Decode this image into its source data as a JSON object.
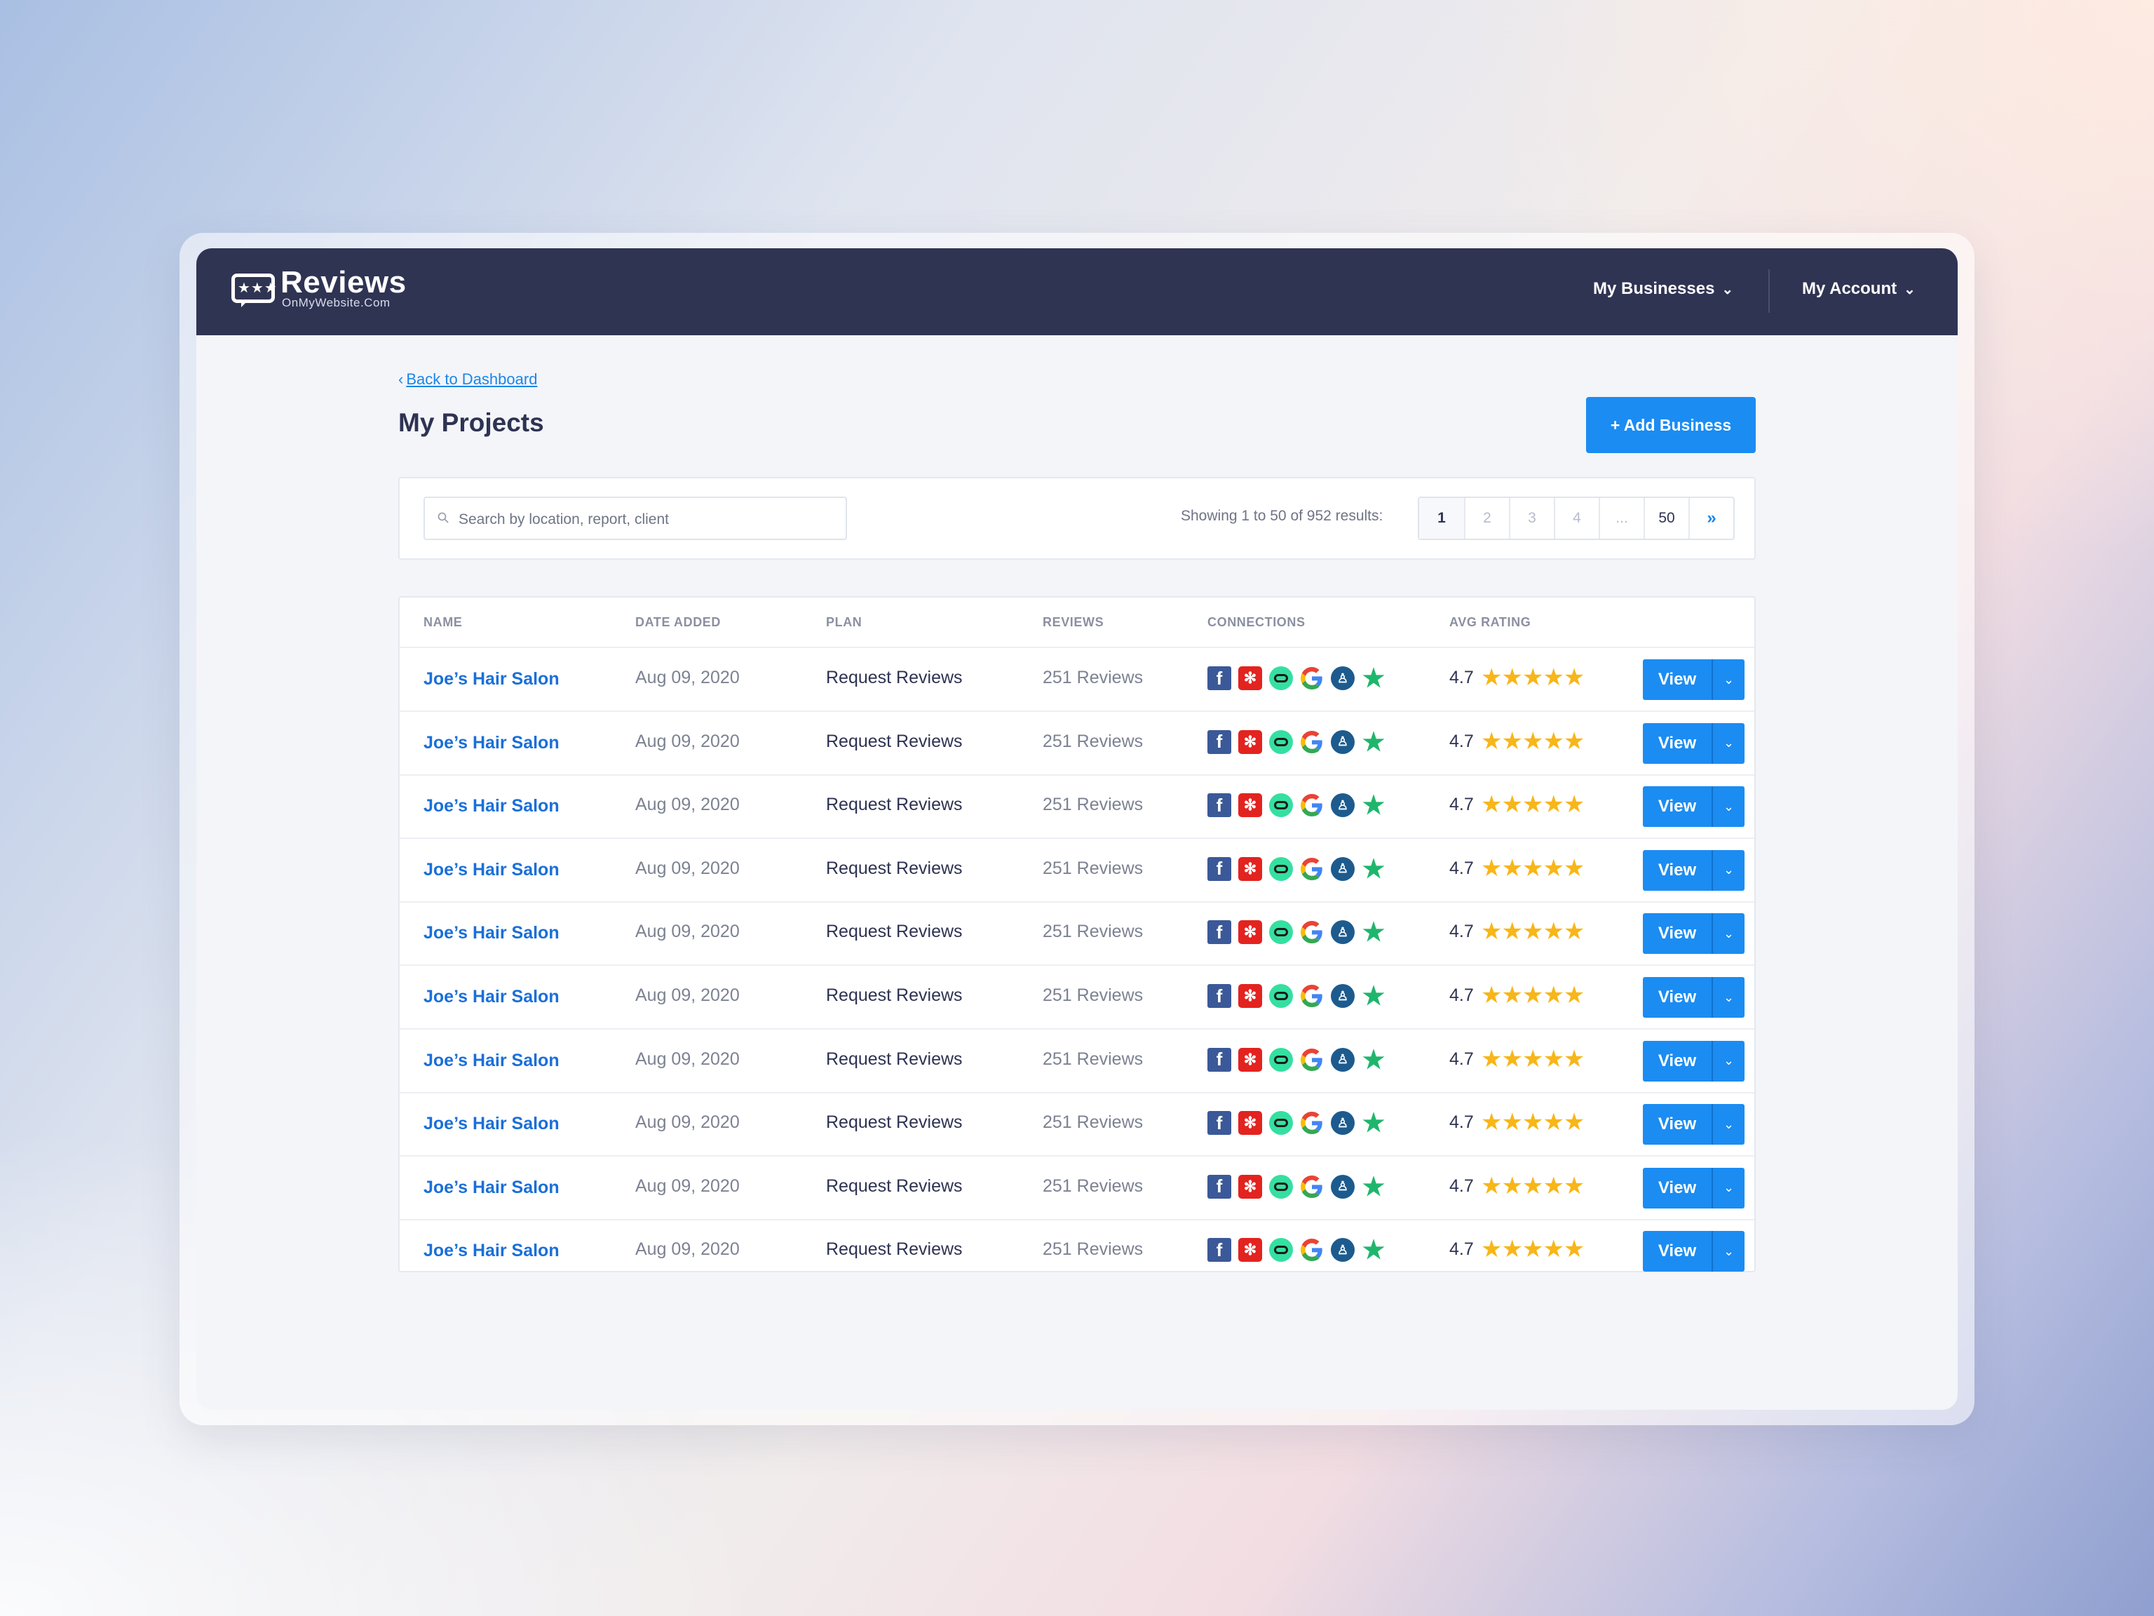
{
  "brand": {
    "name": "Reviews",
    "sub": "OnMyWebsite.Com",
    "stars": "★★★"
  },
  "nav": {
    "businesses": "My Businesses",
    "account": "My Account",
    "chevron": "⌄"
  },
  "page": {
    "back_link": "Back to Dashboard",
    "back_chevron": "‹",
    "title": "My Projects",
    "add_button": "+ Add Business"
  },
  "search": {
    "placeholder": "Search by location, report, client"
  },
  "pagination": {
    "showing": "Showing 1 to 50 of 952 results:",
    "pages": [
      "1",
      "2",
      "3",
      "4",
      "...",
      "50"
    ],
    "next": "»",
    "current": "1"
  },
  "table": {
    "headers": {
      "name": "NAME",
      "date": "DATE ADDED",
      "plan": "PLAN",
      "reviews": "REVIEWS",
      "connections": "CONNECTIONS",
      "rating": "AVG RATING"
    },
    "connection_icons": [
      "facebook-icon",
      "yelp-icon",
      "tripadvisor-icon",
      "google-icon",
      "bbb-icon",
      "trustpilot-icon"
    ],
    "view_label": "View",
    "rows": [
      {
        "name": "Joe’s Hair Salon",
        "date": "Aug 09, 2020",
        "plan": "Request Reviews",
        "reviews": "251 Reviews",
        "rating": "4.7",
        "stars": 5
      },
      {
        "name": "Joe’s Hair Salon",
        "date": "Aug 09, 2020",
        "plan": "Request Reviews",
        "reviews": "251 Reviews",
        "rating": "4.7",
        "stars": 5
      },
      {
        "name": "Joe’s Hair Salon",
        "date": "Aug 09, 2020",
        "plan": "Request Reviews",
        "reviews": "251 Reviews",
        "rating": "4.7",
        "stars": 5
      },
      {
        "name": "Joe’s Hair Salon",
        "date": "Aug 09, 2020",
        "plan": "Request Reviews",
        "reviews": "251 Reviews",
        "rating": "4.7",
        "stars": 5
      },
      {
        "name": "Joe’s Hair Salon",
        "date": "Aug 09, 2020",
        "plan": "Request Reviews",
        "reviews": "251 Reviews",
        "rating": "4.7",
        "stars": 5
      },
      {
        "name": "Joe’s Hair Salon",
        "date": "Aug 09, 2020",
        "plan": "Request Reviews",
        "reviews": "251 Reviews",
        "rating": "4.7",
        "stars": 5
      },
      {
        "name": "Joe’s Hair Salon",
        "date": "Aug 09, 2020",
        "plan": "Request Reviews",
        "reviews": "251 Reviews",
        "rating": "4.7",
        "stars": 5
      },
      {
        "name": "Joe’s Hair Salon",
        "date": "Aug 09, 2020",
        "plan": "Request Reviews",
        "reviews": "251 Reviews",
        "rating": "4.7",
        "stars": 5
      },
      {
        "name": "Joe’s Hair Salon",
        "date": "Aug 09, 2020",
        "plan": "Request Reviews",
        "reviews": "251 Reviews",
        "rating": "4.7",
        "stars": 5
      },
      {
        "name": "Joe’s Hair Salon",
        "date": "Aug 09, 2020",
        "plan": "Request Reviews",
        "reviews": "251 Reviews",
        "rating": "4.7",
        "stars": 5
      }
    ]
  },
  "colors": {
    "navbar": "#303453",
    "accent": "#1b8cf2",
    "link": "#1a6fd8",
    "star": "#f7b619",
    "page_bg": "#f3f5f9"
  }
}
